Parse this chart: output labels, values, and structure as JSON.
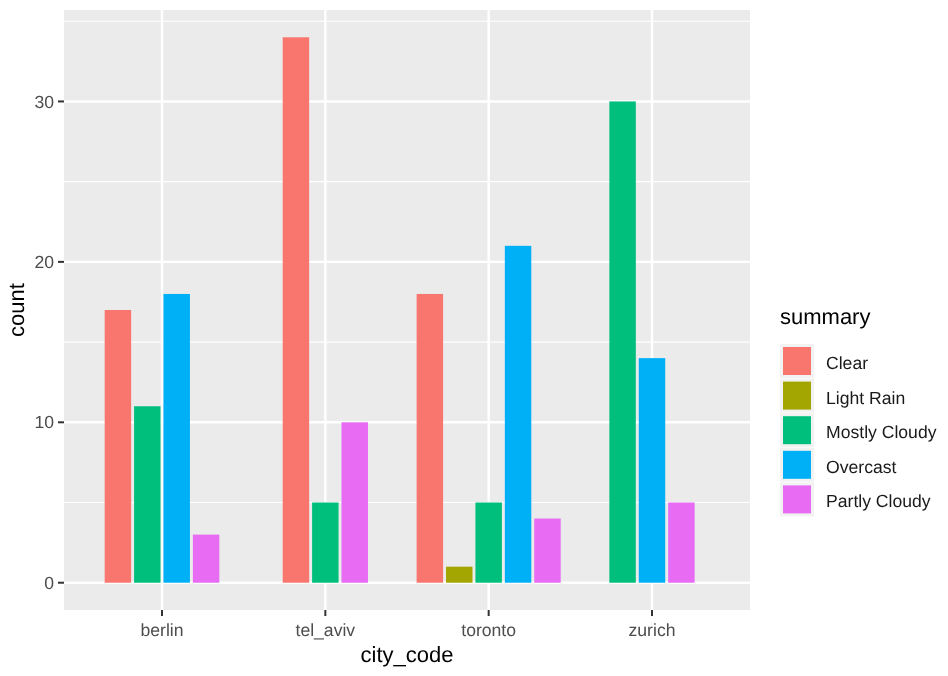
{
  "chart_data": {
    "type": "bar",
    "xlabel": "city_code",
    "ylabel": "count",
    "legend_title": "summary",
    "categories": [
      "berlin",
      "tel_aviv",
      "toronto",
      "zurich"
    ],
    "series": [
      {
        "name": "Clear",
        "color": "#f8766d",
        "values": [
          17,
          34,
          18,
          null
        ]
      },
      {
        "name": "Light Rain",
        "color": "#a3a500",
        "values": [
          null,
          null,
          1,
          null
        ]
      },
      {
        "name": "Mostly Cloudy",
        "color": "#00bf7d",
        "values": [
          11,
          5,
          5,
          30
        ]
      },
      {
        "name": "Overcast",
        "color": "#00b0f6",
        "values": [
          18,
          null,
          21,
          14
        ]
      },
      {
        "name": "Partly Cloudy",
        "color": "#e76bf3",
        "values": [
          3,
          10,
          4,
          5
        ]
      }
    ],
    "ylim": [
      -1.7,
      35.7
    ],
    "yticks": [
      0,
      10,
      20,
      30
    ],
    "grid": true,
    "legend": "right"
  }
}
